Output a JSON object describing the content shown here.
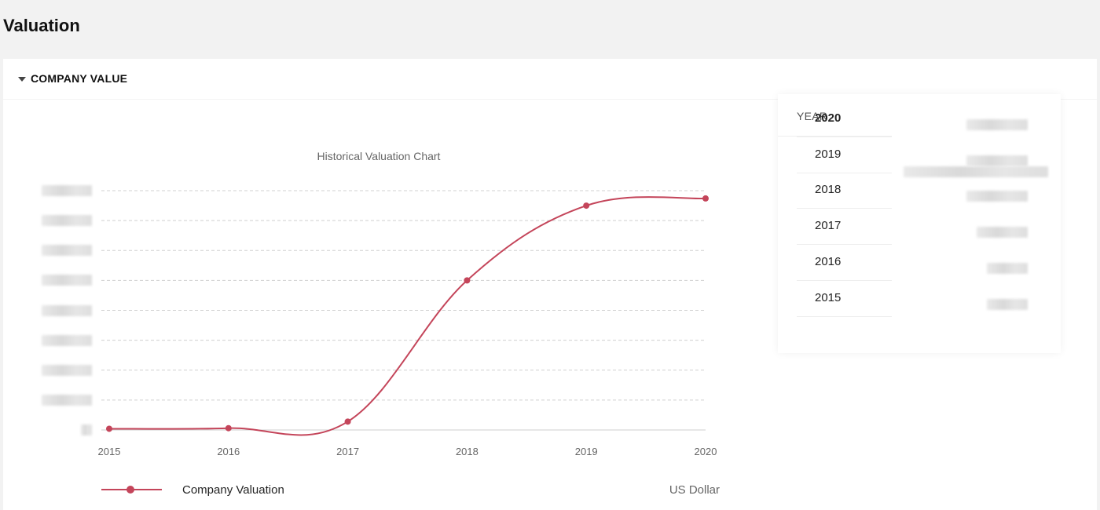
{
  "page": {
    "title": "Valuation"
  },
  "section": {
    "title": "COMPANY VALUE",
    "collapse_icon": "caret-down-icon"
  },
  "chart_data": {
    "type": "line",
    "title": "Historical Valuation Chart",
    "x": [
      "2015",
      "2016",
      "2017",
      "2018",
      "2019",
      "2020"
    ],
    "series": [
      {
        "name": "Company Valuation",
        "values": [
          0.2,
          0.3,
          1.4,
          25.0,
          37.5,
          38.7
        ],
        "color": "#c4455a"
      }
    ],
    "ylim": [
      0,
      40
    ],
    "y_gridlines": 8,
    "y_tick_labels_visible": false,
    "grid": true,
    "legend_position": "bottom-left",
    "unit": "US Dollar"
  },
  "table": {
    "header_year": "YEAR",
    "rows": [
      {
        "year": "2020",
        "selected": true
      },
      {
        "year": "2019",
        "selected": false
      },
      {
        "year": "2018",
        "selected": false
      },
      {
        "year": "2017",
        "selected": false
      },
      {
        "year": "2016",
        "selected": false
      },
      {
        "year": "2015",
        "selected": false
      }
    ]
  }
}
